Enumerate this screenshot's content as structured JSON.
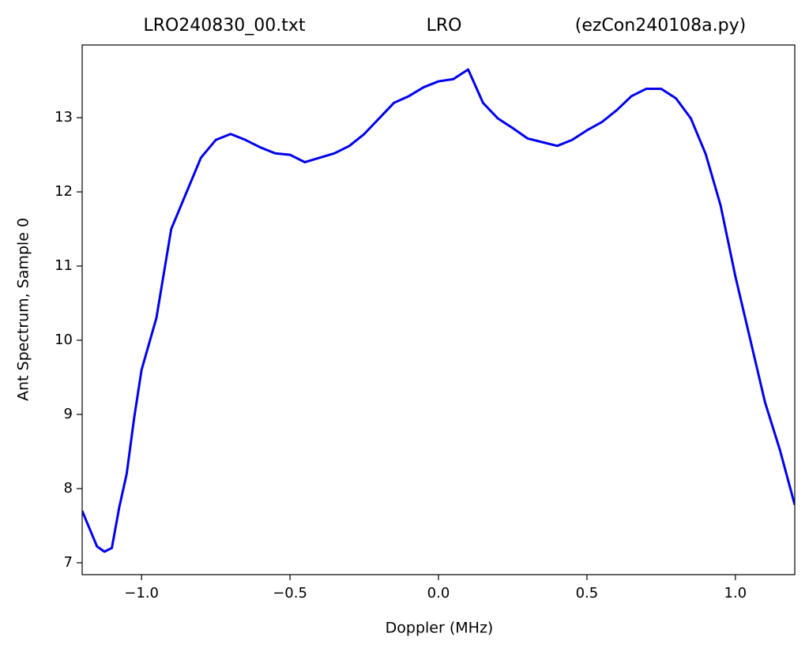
{
  "chart_data": {
    "type": "line",
    "title_parts": [
      "LRO240830_00.txt",
      "LRO",
      "(ezCon240108a.py)"
    ],
    "xlabel": "Doppler (MHz)",
    "ylabel": "Ant Spectrum, Sample 0",
    "color": "#0000ee",
    "x": [
      -1.2,
      -1.15,
      -1.125,
      -1.1,
      -1.075,
      -1.05,
      -1.025,
      -1.0,
      -0.95,
      -0.9,
      -0.85,
      -0.8,
      -0.75,
      -0.7,
      -0.65,
      -0.6,
      -0.55,
      -0.5,
      -0.45,
      -0.4,
      -0.35,
      -0.3,
      -0.25,
      -0.2,
      -0.15,
      -0.1,
      -0.05,
      0.0,
      0.05,
      0.1,
      0.15,
      0.2,
      0.25,
      0.3,
      0.35,
      0.4,
      0.45,
      0.5,
      0.55,
      0.6,
      0.65,
      0.7,
      0.75,
      0.8,
      0.85,
      0.9,
      0.95,
      1.0,
      1.05,
      1.1,
      1.15,
      1.2
    ],
    "values": [
      7.7,
      7.22,
      7.15,
      7.2,
      7.75,
      8.2,
      8.95,
      9.6,
      10.3,
      11.5,
      11.98,
      12.46,
      12.7,
      12.78,
      12.7,
      12.6,
      12.52,
      12.5,
      12.4,
      12.46,
      12.52,
      12.62,
      12.78,
      12.99,
      13.2,
      13.29,
      13.41,
      13.49,
      13.52,
      13.65,
      13.2,
      12.99,
      12.86,
      12.72,
      12.67,
      12.62,
      12.7,
      12.83,
      12.94,
      13.1,
      13.29,
      13.39,
      13.39,
      13.26,
      12.99,
      12.51,
      11.82,
      10.86,
      10.01,
      9.16,
      8.52,
      7.78
    ],
    "xlim": [
      -1.2,
      1.2
    ],
    "ylim": [
      6.84,
      13.98
    ],
    "xticks": [
      {
        "value": -1.0,
        "label": "−1.0"
      },
      {
        "value": -0.5,
        "label": "−0.5"
      },
      {
        "value": 0.0,
        "label": "0.0"
      },
      {
        "value": 0.5,
        "label": "0.5"
      },
      {
        "value": 1.0,
        "label": "1.0"
      }
    ],
    "yticks": [
      7,
      8,
      9,
      10,
      11,
      12,
      13
    ]
  }
}
